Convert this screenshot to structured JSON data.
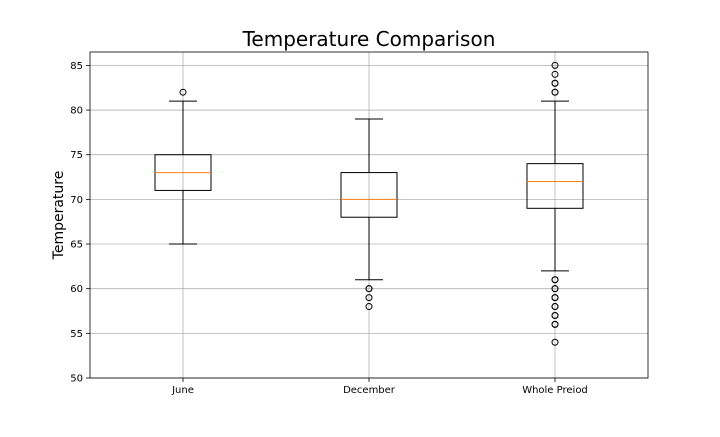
{
  "chart_data": {
    "type": "box",
    "title": "Temperature Comparison",
    "xlabel": "",
    "ylabel": "Temperature",
    "ylim": [
      50,
      86.5
    ],
    "yticks": [
      50,
      55,
      60,
      65,
      70,
      75,
      80,
      85
    ],
    "grid": true,
    "median_color": "#ff7f0e",
    "categories": [
      "June",
      "December",
      "Whole Preiod"
    ],
    "boxes": [
      {
        "whisker_low": 65,
        "q1": 71,
        "median": 73,
        "q3": 75,
        "whisker_high": 81,
        "fliers": [
          82
        ]
      },
      {
        "whisker_low": 61,
        "q1": 68,
        "median": 70,
        "q3": 73,
        "whisker_high": 79,
        "fliers": [
          60,
          60,
          59,
          58
        ]
      },
      {
        "whisker_low": 62,
        "q1": 69,
        "median": 72,
        "q3": 74,
        "whisker_high": 81,
        "fliers": [
          82,
          82,
          83,
          83,
          84,
          85,
          61,
          61,
          60,
          60,
          59,
          59,
          58,
          58,
          57,
          57,
          56,
          56,
          54
        ]
      }
    ]
  }
}
